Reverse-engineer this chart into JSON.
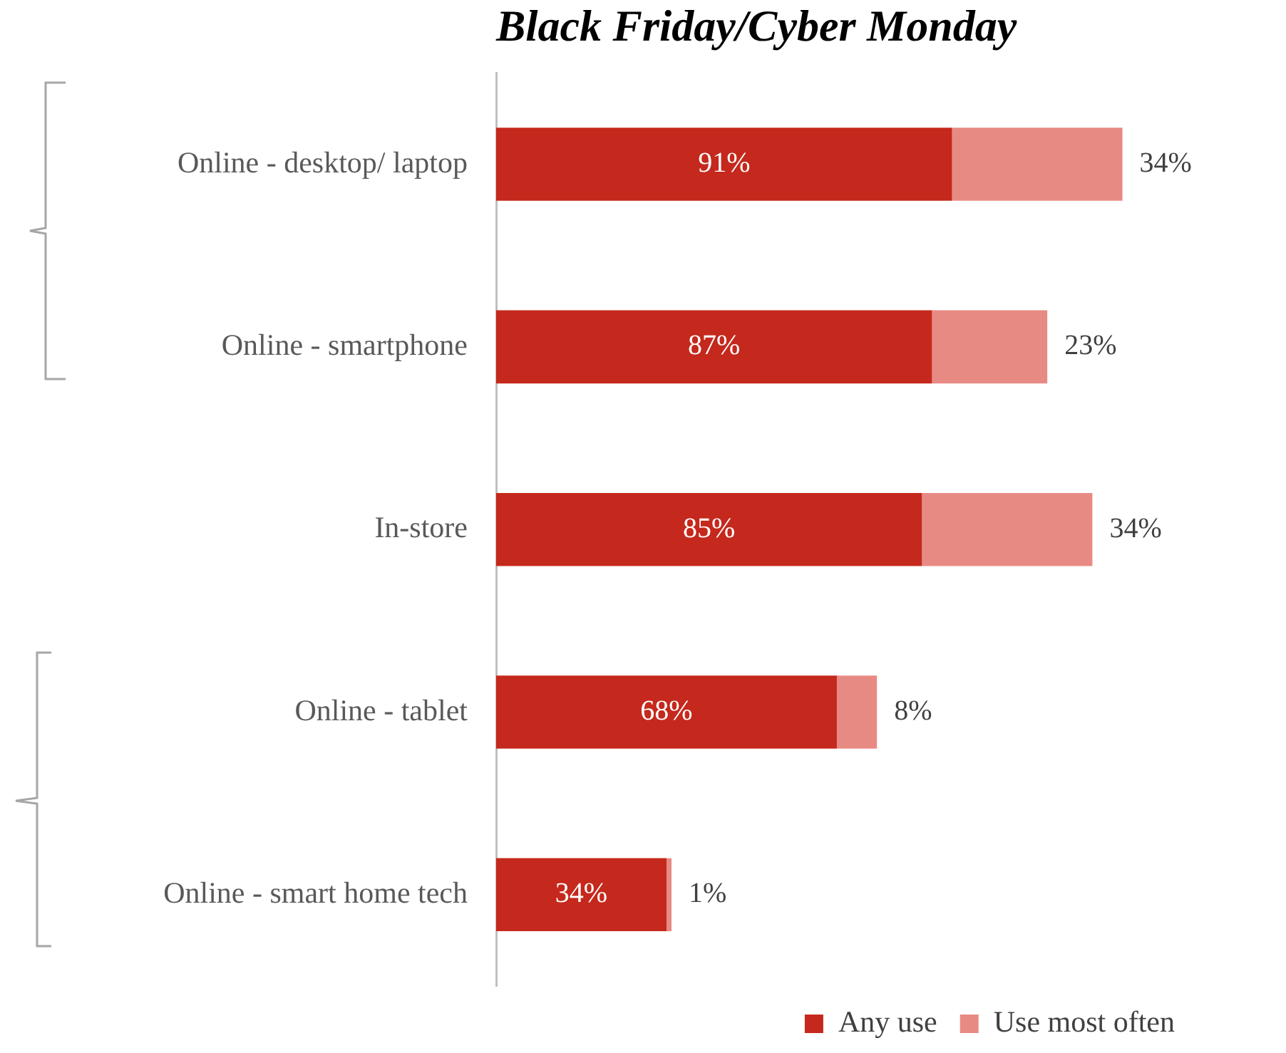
{
  "chart_data": {
    "type": "bar",
    "orientation": "horizontal",
    "stacked": true,
    "title": "Black Friday/Cyber Monday",
    "categories": [
      "Online - desktop/ laptop",
      "Online - smartphone",
      "In-store",
      "Online - tablet",
      "Online - smart home tech"
    ],
    "series": [
      {
        "name": "Any use",
        "color": "#c5281c",
        "values": [
          91,
          87,
          85,
          68,
          34
        ],
        "value_labels": [
          "91%",
          "87%",
          "85%",
          "68%",
          "34%"
        ]
      },
      {
        "name": "Use most often",
        "color": "#e88a84",
        "values": [
          34,
          23,
          34,
          8,
          1
        ],
        "value_labels": [
          "34%",
          "23%",
          "34%",
          "8%",
          "1%"
        ]
      }
    ],
    "legend": "bottom right"
  }
}
